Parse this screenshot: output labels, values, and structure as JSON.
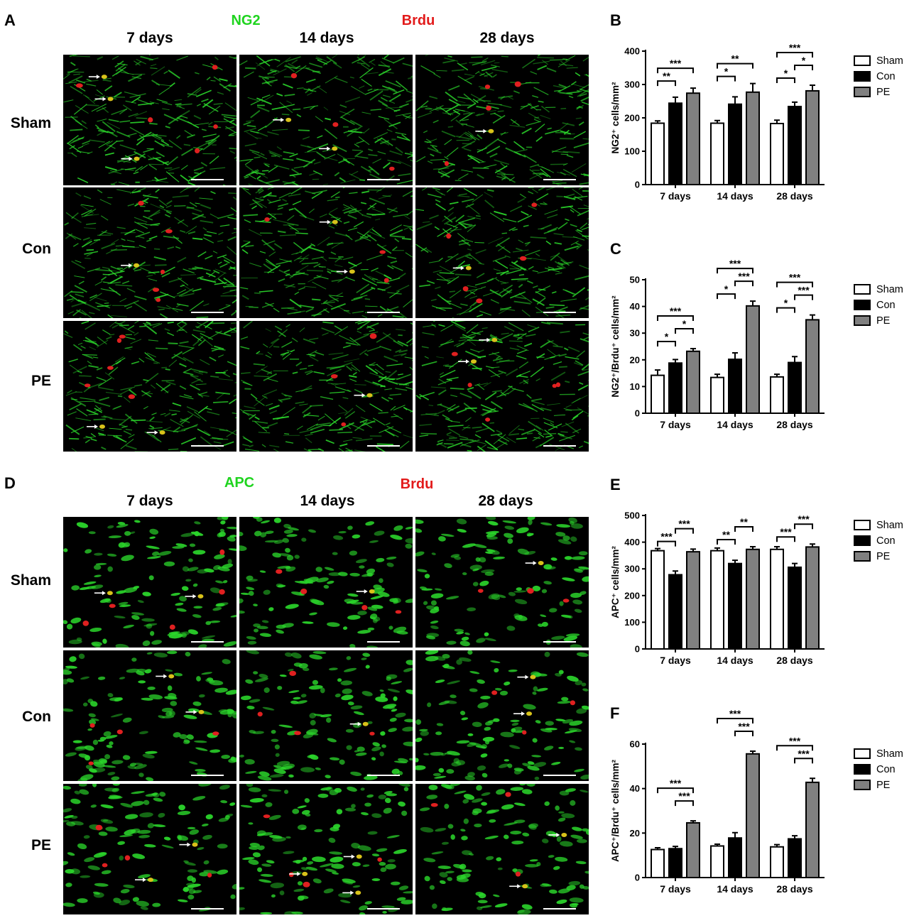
{
  "panels": {
    "A": {
      "letter": "A",
      "stain_green": "NG2",
      "stain_red": "Brdu",
      "columns": [
        "7 days",
        "14 days",
        "28 days"
      ],
      "rows": [
        "Sham",
        "Con",
        "PE"
      ]
    },
    "D": {
      "letter": "D",
      "stain_green": "APC",
      "stain_red": "Brdu",
      "columns": [
        "7 days",
        "14 days",
        "28 days"
      ],
      "rows": [
        "Sham",
        "Con",
        "PE"
      ]
    }
  },
  "colors": {
    "green_stain": "#2bd62b",
    "red_stain": "#e02020",
    "sham": "#ffffff",
    "con": "#000000",
    "pe": "#808080",
    "arrow": "#ffffff"
  },
  "chart_data": [
    {
      "id": "B",
      "letter": "B",
      "type": "bar",
      "ylabel": "NG2⁺ cells/mm²",
      "ylim": [
        0,
        400
      ],
      "yticks": [
        0,
        100,
        200,
        300,
        400
      ],
      "categories": [
        "7 days",
        "14 days",
        "28 days"
      ],
      "series": [
        {
          "name": "Sham",
          "values": [
            184,
            184,
            183
          ],
          "errors": [
            7,
            8,
            10
          ]
        },
        {
          "name": "Con",
          "values": [
            244,
            241,
            234
          ],
          "errors": [
            18,
            22,
            13
          ]
        },
        {
          "name": "PE",
          "values": [
            274,
            277,
            281
          ],
          "errors": [
            15,
            26,
            17
          ]
        }
      ],
      "significance": [
        {
          "group": 0,
          "from": 0,
          "to": 1,
          "label": "**",
          "level": 0
        },
        {
          "group": 0,
          "from": 0,
          "to": 2,
          "label": "***",
          "level": 1
        },
        {
          "group": 1,
          "from": 0,
          "to": 1,
          "label": "*",
          "level": 0
        },
        {
          "group": 1,
          "from": 0,
          "to": 2,
          "label": "**",
          "level": 1
        },
        {
          "group": 2,
          "from": 0,
          "to": 1,
          "label": "*",
          "level": 0
        },
        {
          "group": 2,
          "from": 1,
          "to": 2,
          "label": "*",
          "level": 1
        },
        {
          "group": 2,
          "from": 0,
          "to": 2,
          "label": "***",
          "level": 2
        }
      ],
      "legend": [
        "Sham",
        "Con",
        "PE"
      ]
    },
    {
      "id": "C",
      "letter": "C",
      "type": "bar",
      "ylabel": "NG2⁺/Brdu⁺ cells/mm²",
      "ylim": [
        0,
        50
      ],
      "yticks": [
        0,
        10,
        20,
        30,
        40,
        50
      ],
      "categories": [
        "7 days",
        "14 days",
        "28 days"
      ],
      "series": [
        {
          "name": "Sham",
          "values": [
            14.2,
            13.4,
            13.6
          ],
          "errors": [
            2.0,
            1.2,
            1.0
          ]
        },
        {
          "name": "Con",
          "values": [
            18.8,
            20.2,
            19.0
          ],
          "errors": [
            1.3,
            2.4,
            2.2
          ]
        },
        {
          "name": "PE",
          "values": [
            23.2,
            40.2,
            35.0
          ],
          "errors": [
            1.0,
            1.8,
            1.8
          ]
        }
      ],
      "significance": [
        {
          "group": 0,
          "from": 0,
          "to": 1,
          "label": "*",
          "level": 0
        },
        {
          "group": 0,
          "from": 1,
          "to": 2,
          "label": "*",
          "level": 1
        },
        {
          "group": 0,
          "from": 0,
          "to": 2,
          "label": "***",
          "level": 2
        },
        {
          "group": 1,
          "from": 0,
          "to": 1,
          "label": "*",
          "level": 0
        },
        {
          "group": 1,
          "from": 1,
          "to": 2,
          "label": "***",
          "level": 1
        },
        {
          "group": 1,
          "from": 0,
          "to": 2,
          "label": "***",
          "level": 2
        },
        {
          "group": 2,
          "from": 0,
          "to": 1,
          "label": "*",
          "level": 0
        },
        {
          "group": 2,
          "from": 1,
          "to": 2,
          "label": "***",
          "level": 1
        },
        {
          "group": 2,
          "from": 0,
          "to": 2,
          "label": "***",
          "level": 2
        }
      ],
      "legend": [
        "Sham",
        "Con",
        "PE"
      ]
    },
    {
      "id": "E",
      "letter": "E",
      "type": "bar",
      "ylabel": "APC⁺ cells/mm²",
      "ylim": [
        0,
        500
      ],
      "yticks": [
        0,
        100,
        200,
        300,
        400,
        500
      ],
      "categories": [
        "7 days",
        "14 days",
        "28 days"
      ],
      "series": [
        {
          "name": "Sham",
          "values": [
            368,
            368,
            373
          ],
          "errors": [
            8,
            10,
            10
          ]
        },
        {
          "name": "Con",
          "values": [
            278,
            320,
            306
          ],
          "errors": [
            14,
            12,
            14
          ]
        },
        {
          "name": "PE",
          "values": [
            364,
            373,
            382
          ],
          "errors": [
            10,
            10,
            11
          ]
        }
      ],
      "significance": [
        {
          "group": 0,
          "from": 0,
          "to": 1,
          "label": "***",
          "level": 0
        },
        {
          "group": 0,
          "from": 1,
          "to": 2,
          "label": "***",
          "level": 1
        },
        {
          "group": 1,
          "from": 0,
          "to": 1,
          "label": "**",
          "level": 0
        },
        {
          "group": 1,
          "from": 1,
          "to": 2,
          "label": "**",
          "level": 1
        },
        {
          "group": 2,
          "from": 0,
          "to": 1,
          "label": "***",
          "level": 0
        },
        {
          "group": 2,
          "from": 1,
          "to": 2,
          "label": "***",
          "level": 1
        }
      ],
      "legend": [
        "Sham",
        "Con",
        "PE"
      ]
    },
    {
      "id": "F",
      "letter": "F",
      "type": "bar",
      "ylabel": "APC⁺/Brdu⁺ cells/mm²",
      "ylim": [
        0,
        60
      ],
      "yticks": [
        0,
        20,
        40,
        60
      ],
      "categories": [
        "7 days",
        "14 days",
        "28 days"
      ],
      "series": [
        {
          "name": "Sham",
          "values": [
            12.6,
            14.2,
            13.8
          ],
          "errors": [
            0.8,
            0.8,
            1.0
          ]
        },
        {
          "name": "Con",
          "values": [
            13.0,
            17.8,
            17.4
          ],
          "errors": [
            1.0,
            2.4,
            1.4
          ]
        },
        {
          "name": "PE",
          "values": [
            24.6,
            55.6,
            42.8
          ],
          "errors": [
            0.9,
            1.2,
            1.8
          ]
        }
      ],
      "significance": [
        {
          "group": 0,
          "from": 1,
          "to": 2,
          "label": "***",
          "level": 1
        },
        {
          "group": 0,
          "from": 0,
          "to": 2,
          "label": "***",
          "level": 2
        },
        {
          "group": 1,
          "from": 1,
          "to": 2,
          "label": "***",
          "level": 1
        },
        {
          "group": 1,
          "from": 0,
          "to": 2,
          "label": "***",
          "level": 2
        },
        {
          "group": 2,
          "from": 1,
          "to": 2,
          "label": "***",
          "level": 1
        },
        {
          "group": 2,
          "from": 0,
          "to": 2,
          "label": "***",
          "level": 2
        }
      ],
      "legend": [
        "Sham",
        "Con",
        "PE"
      ]
    }
  ]
}
